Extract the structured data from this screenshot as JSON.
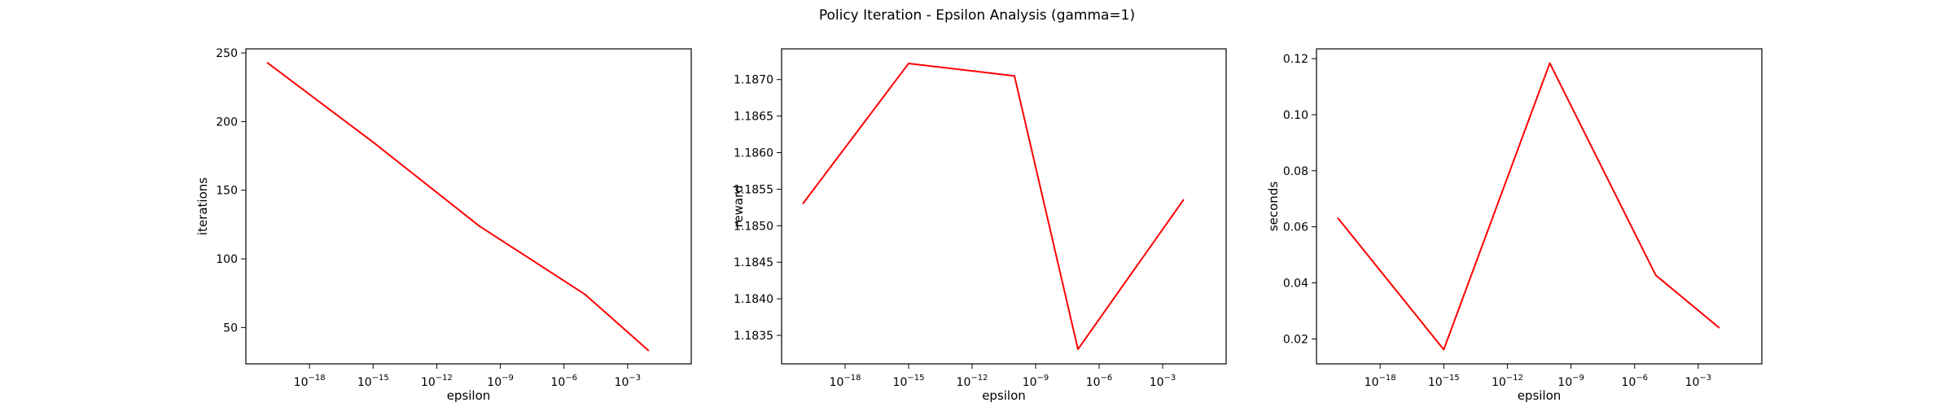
{
  "figure": {
    "title": "Policy Iteration - Epsilon Analysis (gamma=1)"
  },
  "colors": {
    "line": "#ff0000",
    "axes": "#000000",
    "background": "#ffffff"
  },
  "chart_data": [
    {
      "type": "line",
      "xscale": "log",
      "xlabel": "epsilon",
      "ylabel": "iterations",
      "x": [
        1e-20,
        1e-15,
        1e-10,
        1e-05,
        0.01
      ],
      "values": [
        243,
        185,
        124,
        74,
        33
      ],
      "xlim": [
        1e-21,
        1
      ],
      "ylim": [
        23.5,
        253
      ],
      "xticks": [
        1e-18,
        1e-15,
        1e-12,
        1e-09,
        1e-06,
        0.001
      ],
      "xtick_labels": [
        {
          "base": "10",
          "exp": "−18"
        },
        {
          "base": "10",
          "exp": "−15"
        },
        {
          "base": "10",
          "exp": "−12"
        },
        {
          "base": "10",
          "exp": "−9"
        },
        {
          "base": "10",
          "exp": "−6"
        },
        {
          "base": "10",
          "exp": "−3"
        }
      ],
      "yticks": [
        50,
        100,
        150,
        200,
        250
      ],
      "ytick_labels": [
        "50",
        "100",
        "150",
        "200",
        "250"
      ],
      "grid": false
    },
    {
      "type": "line",
      "xscale": "log",
      "xlabel": "epsilon",
      "ylabel": "reward",
      "x": [
        1e-20,
        1e-15,
        1e-10,
        1e-07,
        0.01
      ],
      "values": [
        1.1853,
        1.18722,
        1.18705,
        1.18331,
        1.18536
      ],
      "xlim": [
        1e-21,
        1
      ],
      "ylim": [
        1.18311,
        1.18742
      ],
      "xticks": [
        1e-18,
        1e-15,
        1e-12,
        1e-09,
        1e-06,
        0.001
      ],
      "xtick_labels": [
        {
          "base": "10",
          "exp": "−18"
        },
        {
          "base": "10",
          "exp": "−15"
        },
        {
          "base": "10",
          "exp": "−12"
        },
        {
          "base": "10",
          "exp": "−9"
        },
        {
          "base": "10",
          "exp": "−6"
        },
        {
          "base": "10",
          "exp": "−3"
        }
      ],
      "yticks": [
        1.1835,
        1.184,
        1.1845,
        1.185,
        1.1855,
        1.186,
        1.1865,
        1.187
      ],
      "ytick_labels": [
        "1.1835",
        "1.1840",
        "1.1845",
        "1.1850",
        "1.1855",
        "1.1860",
        "1.1865",
        "1.1870"
      ],
      "grid": false
    },
    {
      "type": "line",
      "xscale": "log",
      "xlabel": "epsilon",
      "ylabel": "seconds",
      "x": [
        1e-20,
        1e-15,
        1e-10,
        1e-05,
        0.01
      ],
      "values": [
        0.0632,
        0.0162,
        0.1184,
        0.0427,
        0.0239
      ],
      "xlim": [
        1e-21,
        1
      ],
      "ylim": [
        0.0111,
        0.1235
      ],
      "xticks": [
        1e-18,
        1e-15,
        1e-12,
        1e-09,
        1e-06,
        0.001
      ],
      "xtick_labels": [
        {
          "base": "10",
          "exp": "−18"
        },
        {
          "base": "10",
          "exp": "−15"
        },
        {
          "base": "10",
          "exp": "−12"
        },
        {
          "base": "10",
          "exp": "−9"
        },
        {
          "base": "10",
          "exp": "−6"
        },
        {
          "base": "10",
          "exp": "−3"
        }
      ],
      "yticks": [
        0.02,
        0.04,
        0.06,
        0.08,
        0.1,
        0.12
      ],
      "ytick_labels": [
        "0.02",
        "0.04",
        "0.06",
        "0.08",
        "0.10",
        "0.12"
      ],
      "grid": false
    }
  ]
}
